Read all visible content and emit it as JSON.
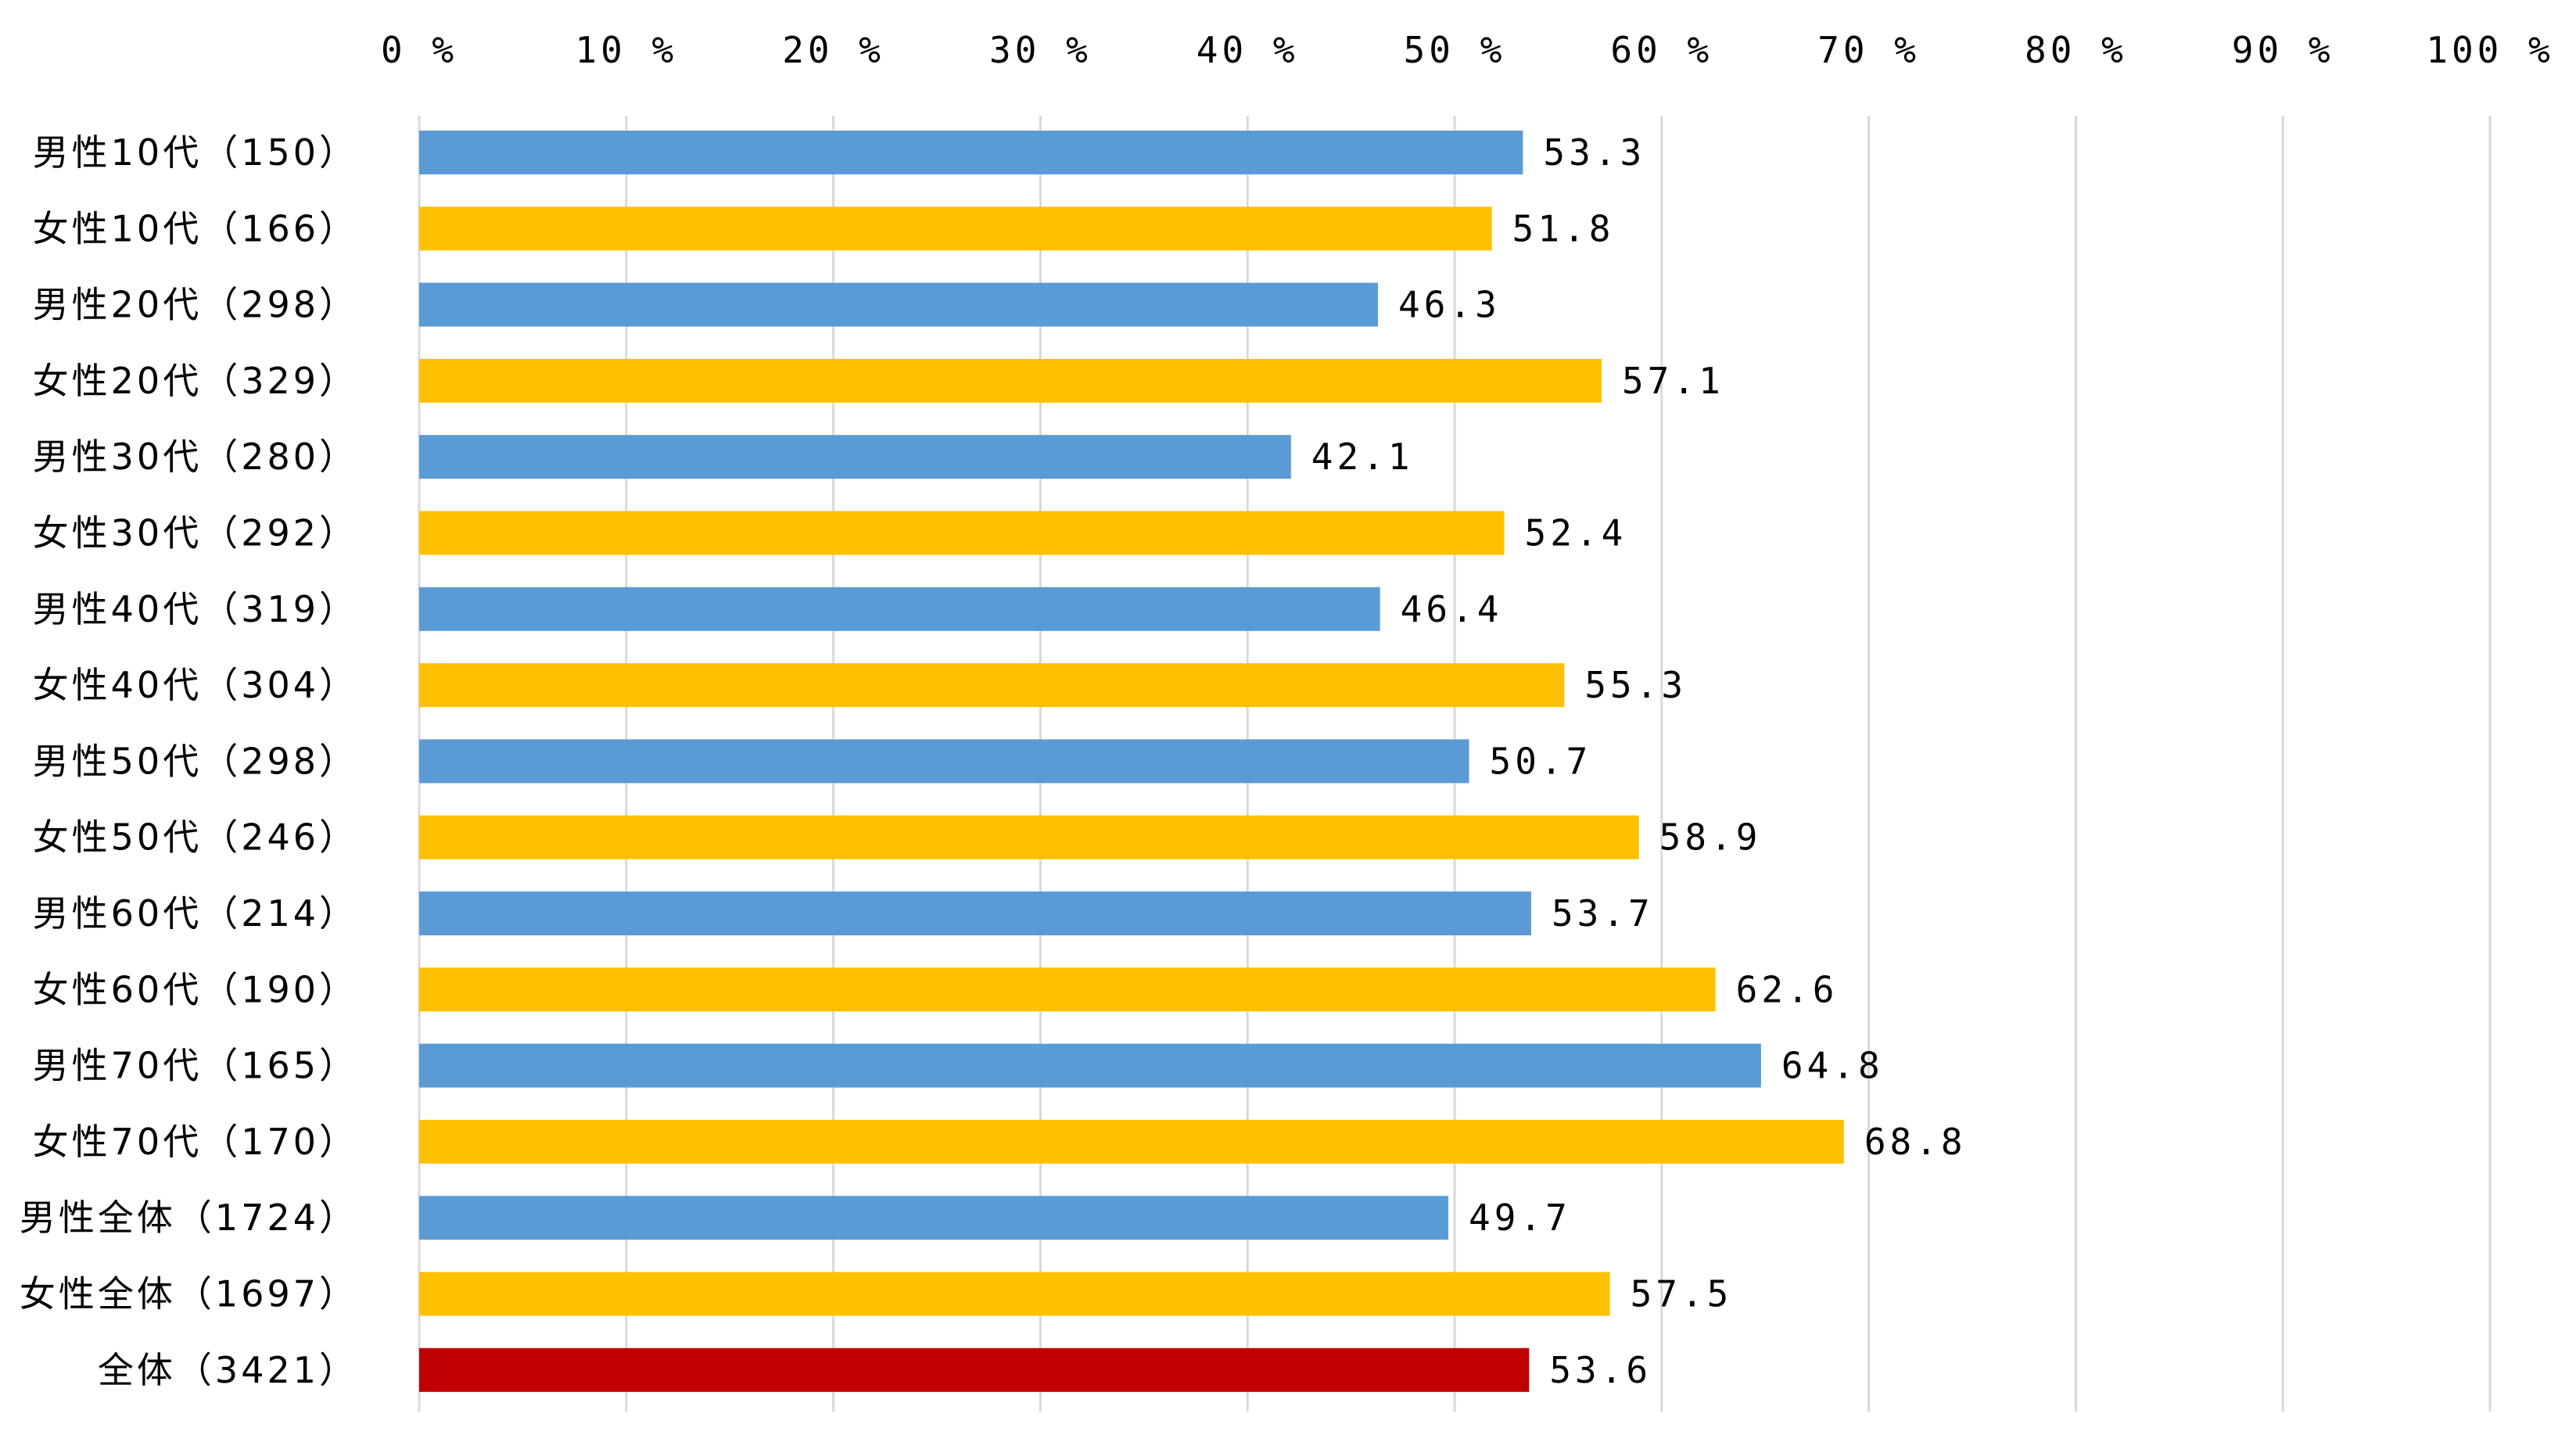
{
  "chart_data": {
    "type": "bar",
    "orientation": "horizontal",
    "title": "",
    "xlabel": "",
    "ylabel": "",
    "xlim": [
      0,
      100
    ],
    "x_ticks": [
      "0 %",
      "10 %",
      "20 %",
      "30 %",
      "40 %",
      "50 %",
      "60 %",
      "70 %",
      "80 %",
      "90 %",
      "100 %"
    ],
    "x_tick_values": [
      0,
      10,
      20,
      30,
      40,
      50,
      60,
      70,
      80,
      90,
      100
    ],
    "x_axis_position": "top",
    "grid": true,
    "legend": "none",
    "categories": [
      "男性10代（150）",
      "女性10代（166）",
      "男性20代（298）",
      "女性20代（329）",
      "男性30代（280）",
      "女性30代（292）",
      "男性40代（319）",
      "女性40代（304）",
      "男性50代（298）",
      "女性50代（246）",
      "男性60代（214）",
      "女性60代（190）",
      "男性70代（165）",
      "女性70代（170）",
      "男性全体（1724）",
      "女性全体（1697）",
      "全体（3421）"
    ],
    "values": [
      53.3,
      51.8,
      46.3,
      57.1,
      42.1,
      52.4,
      46.4,
      55.3,
      50.7,
      58.9,
      53.7,
      62.6,
      64.8,
      68.8,
      49.7,
      57.5,
      53.6
    ],
    "data_labels": [
      "53.3",
      "51.8",
      "46.3",
      "57.1",
      "42.1",
      "52.4",
      "46.4",
      "55.3",
      "50.7",
      "58.9",
      "53.7",
      "62.6",
      "64.8",
      "68.8",
      "49.7",
      "57.5",
      "53.6"
    ],
    "bar_colors": [
      "#5b9bd5",
      "#ffc000",
      "#5b9bd5",
      "#ffc000",
      "#5b9bd5",
      "#ffc000",
      "#5b9bd5",
      "#ffc000",
      "#5b9bd5",
      "#ffc000",
      "#5b9bd5",
      "#ffc000",
      "#5b9bd5",
      "#ffc000",
      "#5b9bd5",
      "#ffc000",
      "#c00000"
    ],
    "colors": {
      "male": "#5b9bd5",
      "female": "#ffc000",
      "total": "#c00000",
      "grid": "#d9d9d9"
    }
  }
}
